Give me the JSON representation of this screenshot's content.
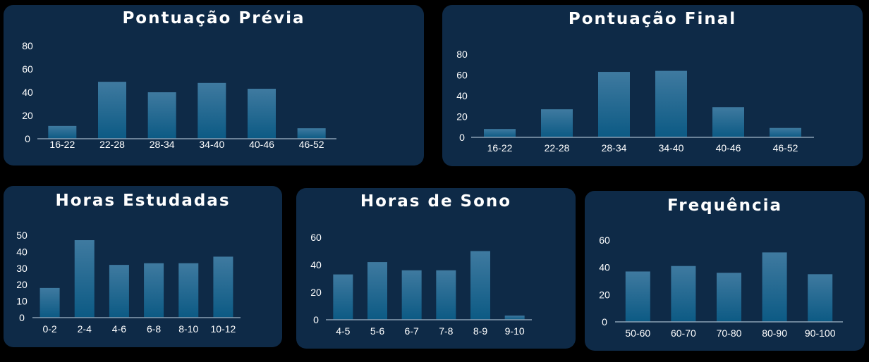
{
  "colors": {
    "background": "#000000",
    "panel": "#0e2a47",
    "bar_top": "#3f7aa0",
    "bar_bottom": "#0c5a84",
    "text": "#ffffff"
  },
  "chart_data": [
    {
      "type": "bar",
      "title": "Pontuação Prévia",
      "categories": [
        "16-22",
        "22-28",
        "28-34",
        "34-40",
        "40-46",
        "46-52"
      ],
      "values": [
        11,
        49,
        40,
        48,
        43,
        9
      ],
      "yticks": [
        0,
        20,
        40,
        60,
        80
      ],
      "ylim": [
        0,
        80
      ]
    },
    {
      "type": "bar",
      "title": "Pontuação Final",
      "categories": [
        "16-22",
        "22-28",
        "28-34",
        "34-40",
        "40-46",
        "46-52"
      ],
      "values": [
        8,
        27,
        63,
        64,
        29,
        9
      ],
      "yticks": [
        0,
        20,
        40,
        60,
        80
      ],
      "ylim": [
        0,
        80
      ]
    },
    {
      "type": "bar",
      "title": "Horas Estudadas",
      "categories": [
        "0-2",
        "2-4",
        "4-6",
        "6-8",
        "8-10",
        "10-12"
      ],
      "values": [
        18,
        47,
        32,
        33,
        33,
        37
      ],
      "yticks": [
        0,
        10,
        20,
        30,
        40,
        50
      ],
      "ylim": [
        0,
        50
      ]
    },
    {
      "type": "bar",
      "title": "Horas de Sono",
      "categories": [
        "4-5",
        "5-6",
        "6-7",
        "7-8",
        "8-9",
        "9-10"
      ],
      "values": [
        33,
        42,
        36,
        36,
        50,
        3
      ],
      "yticks": [
        0,
        20,
        40,
        60
      ],
      "ylim": [
        0,
        60
      ]
    },
    {
      "type": "bar",
      "title": "Frequência",
      "categories": [
        "50-60",
        "60-70",
        "70-80",
        "80-90",
        "90-100"
      ],
      "values": [
        37,
        41,
        36,
        51,
        35
      ],
      "yticks": [
        0,
        20,
        40,
        60
      ],
      "ylim": [
        0,
        60
      ]
    }
  ]
}
